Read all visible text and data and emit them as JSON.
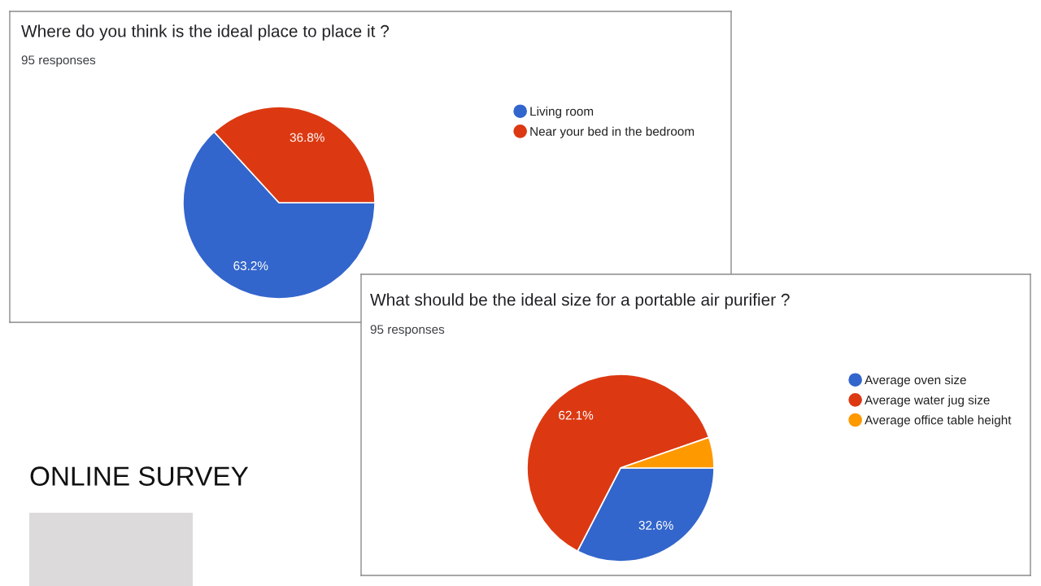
{
  "chart_data": [
    {
      "type": "pie",
      "title": "Where do you think is the ideal place to place it ?",
      "subtitle": "95 responses",
      "categories": [
        "Living room",
        "Near your bed in the bedroom"
      ],
      "values": [
        63.2,
        36.8
      ],
      "colors": [
        "#3366cc",
        "#dc3912"
      ],
      "value_labels": [
        "63.2%",
        "36.8%"
      ],
      "legend": "right"
    },
    {
      "type": "pie",
      "title": "What should be the ideal size for a portable air purifier ?",
      "subtitle": "95 responses",
      "categories": [
        "Average oven size",
        "Average water jug size",
        "Average office table height"
      ],
      "values": [
        32.6,
        62.1,
        5.3
      ],
      "colors": [
        "#3366cc",
        "#dc3912",
        "#ff9900"
      ],
      "value_labels": [
        "32.6%",
        "62.1%",
        null
      ],
      "legend": "right"
    },
    {
      "type": "other",
      "title": "ONLINE SURVEY"
    }
  ]
}
